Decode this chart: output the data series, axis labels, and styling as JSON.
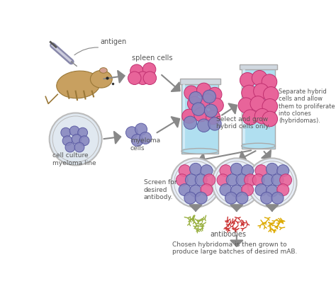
{
  "background_color": "#ffffff",
  "labels": {
    "antigen": "antigen",
    "spleen_cells": "spleen cells",
    "myeloma_line": "cell culture\nmyeloma line",
    "myeloma_cells": "myeloma\ncells",
    "select_grow": "Select and grow\nhybrid cells only.",
    "separate": "Separate hybrid\ncells and allow\nthem to proliferate\ninto clones\n(hybridomas).",
    "screen": "Screen for\ndesired\nantibody.",
    "antibodies": "antibodies",
    "chosen": "Chosen hybridoma is then grown to\nproduce large batches of desired mAB."
  },
  "colors": {
    "spleen_cell_face": "#e8649a",
    "spleen_cell_edge": "#c03070",
    "myeloma_cell_face": "#8888c0",
    "myeloma_cell_edge": "#5555a0",
    "beaker_fill": "#b0dff0",
    "beaker_glass": "#d0eef8",
    "beaker_outline": "#aaaaaa",
    "petri_fill": "#e0f0f8",
    "petri_outline": "#bbbbbb",
    "arrow": "#888888",
    "text": "#555555",
    "antibody_green": "#99b040",
    "antibody_red": "#cc3333",
    "antibody_yellow": "#ddaa00"
  }
}
